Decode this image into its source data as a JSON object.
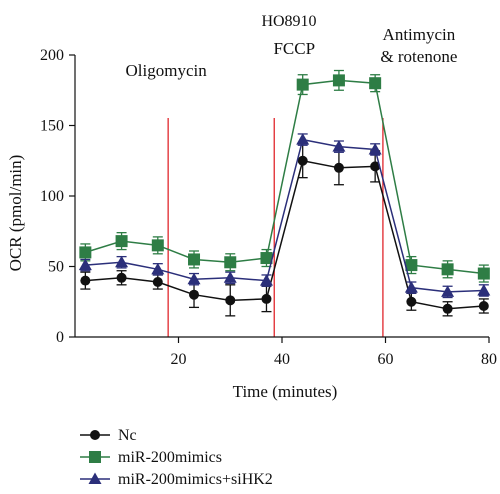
{
  "chart_data": {
    "type": "line",
    "title": "HO8910",
    "xlabel": "Time (minutes)",
    "ylabel": "OCR (pmol/min)",
    "xlim": [
      0,
      80
    ],
    "ylim": [
      0,
      200
    ],
    "xticks": [
      20,
      40,
      60,
      80
    ],
    "yticks": [
      0,
      50,
      100,
      150,
      200
    ],
    "grid": false,
    "legend_position": "bottom-left",
    "x": [
      2,
      9,
      16,
      23,
      30,
      37,
      44,
      51,
      58,
      65,
      72,
      79
    ],
    "series": [
      {
        "name": "Nc",
        "marker": "circle",
        "color": "#111111",
        "values": [
          40,
          42,
          39,
          30,
          26,
          27,
          125,
          120,
          121,
          25,
          20,
          22
        ],
        "errors": [
          6,
          5,
          5,
          9,
          11,
          9,
          12,
          12,
          11,
          6,
          5,
          5
        ]
      },
      {
        "name": "miR-200mimics",
        "marker": "square",
        "color": "#2e7d45",
        "values": [
          60,
          68,
          65,
          55,
          53,
          56,
          179,
          182,
          180,
          51,
          48,
          45
        ],
        "errors": [
          6,
          6,
          6,
          6,
          6,
          6,
          7,
          7,
          6,
          6,
          6,
          6
        ]
      },
      {
        "name": "miR-200mimics+siHK2",
        "marker": "triangle",
        "color": "#2b2f7a",
        "values": [
          51,
          53,
          48,
          41,
          42,
          40,
          140,
          135,
          133,
          35,
          32,
          33
        ],
        "errors": [
          4,
          4,
          4,
          4,
          4,
          4,
          4,
          4,
          4,
          4,
          4,
          4
        ]
      }
    ],
    "injections": [
      {
        "x": 18,
        "label": "Oligomycin"
      },
      {
        "x": 38.5,
        "label": "FCCP"
      },
      {
        "x": 59.5,
        "label": "Antimycin",
        "label2": "& rotenone"
      }
    ],
    "injection_color": "#e0262b"
  }
}
